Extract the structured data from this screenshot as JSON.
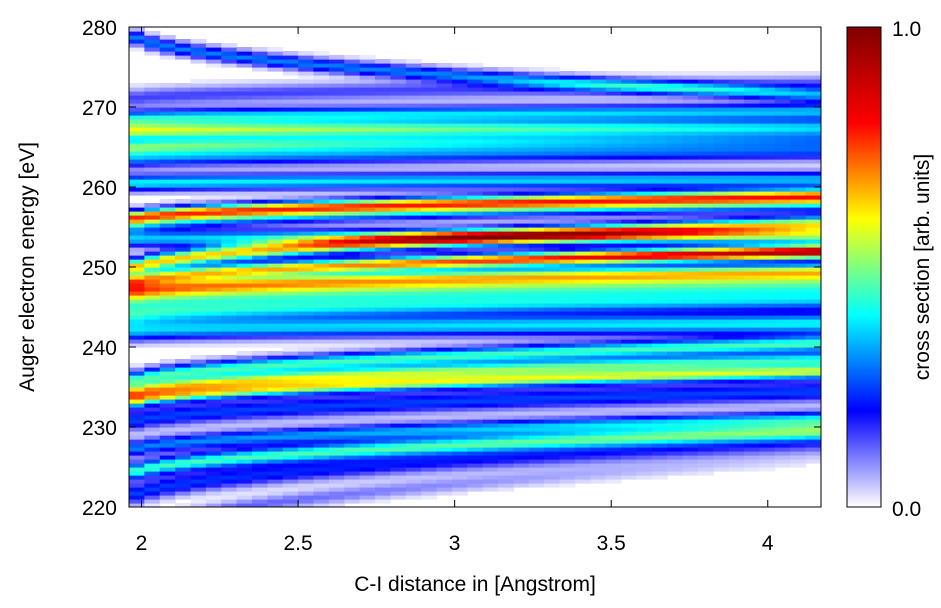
{
  "chart_data": {
    "type": "heatmap",
    "xlabel": "C-I distance in [Angstrom]",
    "ylabel": "Auger electron energy [eV]",
    "colorbar_label": "cross section [arb. units]",
    "xlim": [
      1.96,
      4.17
    ],
    "ylim": [
      220,
      280
    ],
    "xticks": [
      "2",
      "2.5",
      "3",
      "3.5",
      "4"
    ],
    "yticks": [
      "220",
      "230",
      "240",
      "250",
      "260",
      "270",
      "280"
    ],
    "colorbar_ticks": [
      "0.0",
      "1.0"
    ],
    "colorbar_range": [
      0.0,
      1.0
    ],
    "grid": false,
    "colormap": [
      "#ffffff",
      "#0000ff",
      "#00ffff",
      "#ffff00",
      "#ff0000",
      "#800000"
    ],
    "x_columns": 45,
    "bands": [
      {
        "y_start": 279.5,
        "y_end": 271.5,
        "intensity_start": 0.3,
        "intensity_end": 0.3,
        "width": 0.6
      },
      {
        "y_start": 271.0,
        "y_end": 272.8,
        "intensity_start": 0.15,
        "intensity_end": 0.15,
        "width": 0.8
      },
      {
        "y_start": 268.5,
        "y_end": 269.5,
        "intensity_start": 0.4,
        "intensity_end": 0.35,
        "width": 0.7
      },
      {
        "y_start": 267.0,
        "y_end": 267.5,
        "intensity_start": 0.55,
        "intensity_end": 0.35,
        "width": 0.7
      },
      {
        "y_start": 265.0,
        "y_end": 266.0,
        "intensity_start": 0.45,
        "intensity_end": 0.2,
        "width": 0.7
      },
      {
        "y_start": 263.5,
        "y_end": 264.5,
        "intensity_start": 0.3,
        "intensity_end": 0.25,
        "width": 0.8
      },
      {
        "y_start": 260.5,
        "y_end": 261.0,
        "intensity_start": 0.4,
        "intensity_end": 0.35,
        "width": 0.7
      },
      {
        "y_start": 256.0,
        "y_end": 259.0,
        "intensity_start": 0.65,
        "intensity_end": 0.65,
        "width": 0.6
      },
      {
        "y_start": 255.0,
        "y_end": 258.0,
        "intensity_start": 0.3,
        "intensity_end": 0.35,
        "width": 0.7
      },
      {
        "y_start": 253.5,
        "y_end": 254.0,
        "intensity_start": 0.35,
        "intensity_end": 0.5,
        "width": 0.7
      },
      {
        "y_start": 249.5,
        "y_end": 255.5,
        "intensity_start": 0.65,
        "intensity_end": 0.55,
        "width": 0.7
      },
      {
        "y_start": 248.0,
        "y_end": 252.0,
        "intensity_start": 0.55,
        "intensity_end": 0.95,
        "width": 0.6
      },
      {
        "y_start": 247.0,
        "y_end": 249.5,
        "intensity_start": 0.5,
        "intensity_end": 0.55,
        "width": 0.7
      },
      {
        "y_start": 246.0,
        "y_end": 248.0,
        "intensity_start": 0.4,
        "intensity_end": 0.4,
        "width": 0.9
      },
      {
        "y_start": 244.0,
        "y_end": 246.0,
        "intensity_start": 0.4,
        "intensity_end": 0.35,
        "width": 0.9
      },
      {
        "y_start": 242.0,
        "y_end": 243.0,
        "intensity_start": 0.35,
        "intensity_end": 0.4,
        "width": 0.9
      },
      {
        "y_start": 235.5,
        "y_end": 240.5,
        "intensity_start": 0.45,
        "intensity_end": 0.45,
        "width": 0.7
      },
      {
        "y_start": 234.0,
        "y_end": 238.5,
        "intensity_start": 0.55,
        "intensity_end": 0.4,
        "width": 0.6
      },
      {
        "y_start": 233.0,
        "y_end": 237.0,
        "intensity_start": 0.55,
        "intensity_end": 0.55,
        "width": 0.6
      },
      {
        "y_start": 230.5,
        "y_end": 234.5,
        "intensity_start": 0.25,
        "intensity_end": 0.25,
        "width": 0.9
      },
      {
        "y_start": 227.0,
        "y_end": 231.0,
        "intensity_start": 0.3,
        "intensity_end": 0.4,
        "width": 0.7
      },
      {
        "y_start": 224.0,
        "y_end": 229.5,
        "intensity_start": 0.45,
        "intensity_end": 0.45,
        "width": 0.7
      },
      {
        "y_start": 221.0,
        "y_end": 228.0,
        "intensity_start": 0.25,
        "intensity_end": 0.15,
        "width": 0.9
      },
      {
        "y_start": 216.0,
        "y_end": 226.0,
        "intensity_start": 0.15,
        "intensity_end": 0.02,
        "width": 0.7
      }
    ]
  }
}
